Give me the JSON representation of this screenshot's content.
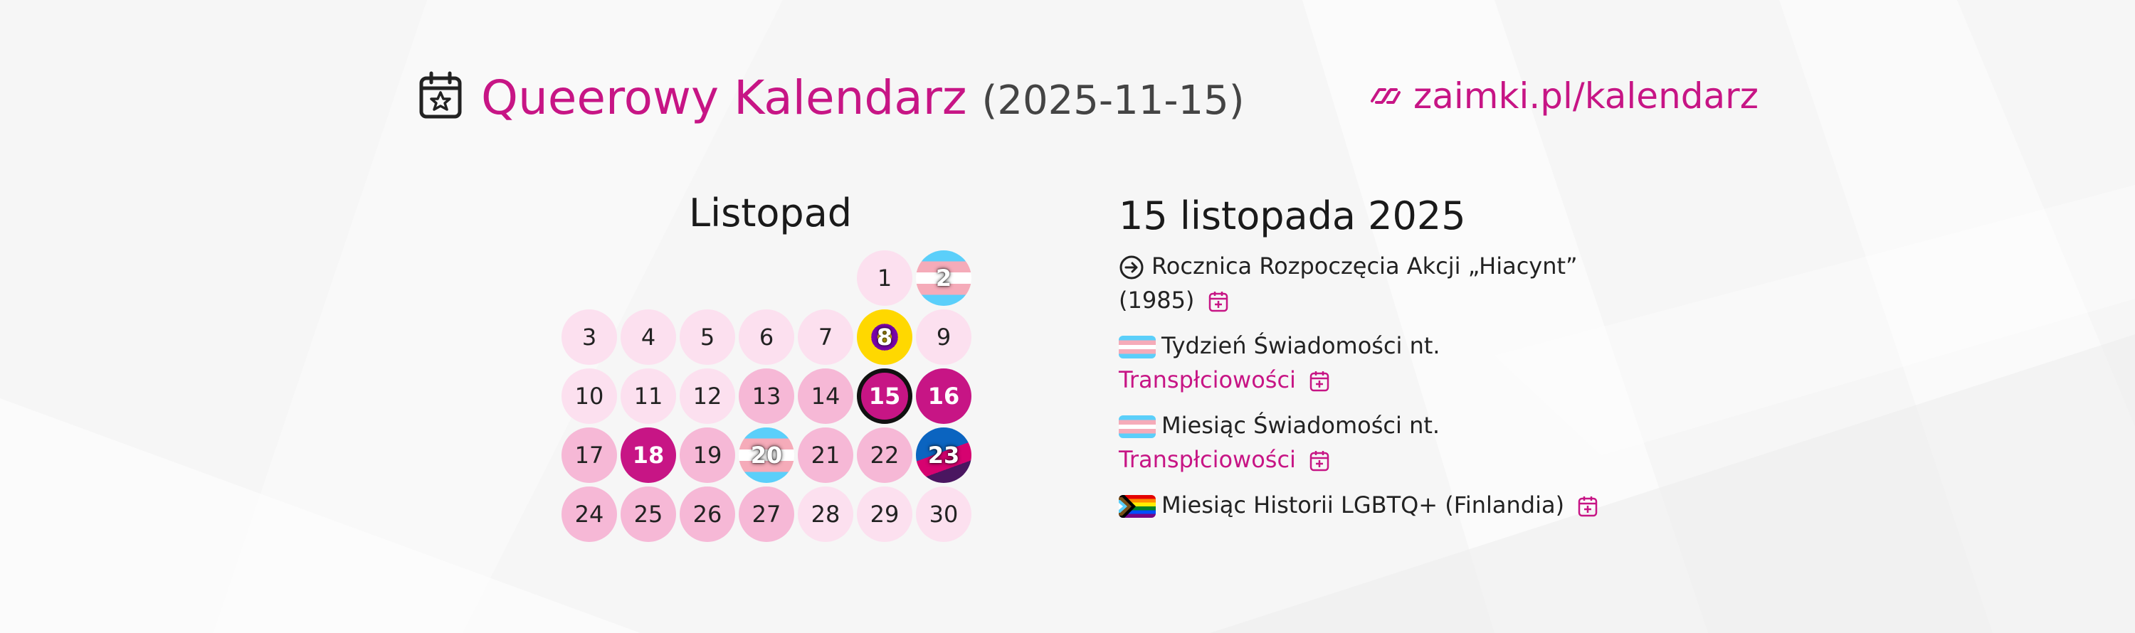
{
  "header": {
    "title": "Queerowy Kalendarz",
    "date": "(2025-11-15)",
    "link": "zaimki.pl/kalendarz",
    "icon": "calendar-star-icon",
    "accent_color": "#c71585"
  },
  "calendar": {
    "month": "Listopad",
    "days": [
      {
        "n": "1",
        "style": "light"
      },
      {
        "n": "2",
        "style": "trans-flag"
      },
      {
        "n": "3",
        "style": "light"
      },
      {
        "n": "4",
        "style": "light"
      },
      {
        "n": "5",
        "style": "light"
      },
      {
        "n": "6",
        "style": "light"
      },
      {
        "n": "7",
        "style": "light"
      },
      {
        "n": "8",
        "style": "intersex-flag"
      },
      {
        "n": "9",
        "style": "light"
      },
      {
        "n": "10",
        "style": "light"
      },
      {
        "n": "11",
        "style": "light"
      },
      {
        "n": "12",
        "style": "light"
      },
      {
        "n": "13",
        "style": "medium"
      },
      {
        "n": "14",
        "style": "medium"
      },
      {
        "n": "15",
        "style": "today"
      },
      {
        "n": "16",
        "style": "dark"
      },
      {
        "n": "17",
        "style": "medium"
      },
      {
        "n": "18",
        "style": "dark"
      },
      {
        "n": "19",
        "style": "medium"
      },
      {
        "n": "20",
        "style": "trans-flag"
      },
      {
        "n": "21",
        "style": "medium"
      },
      {
        "n": "22",
        "style": "medium"
      },
      {
        "n": "23",
        "style": "mixed-flag"
      },
      {
        "n": "24",
        "style": "medium"
      },
      {
        "n": "25",
        "style": "medium"
      },
      {
        "n": "26",
        "style": "medium"
      },
      {
        "n": "27",
        "style": "medium"
      },
      {
        "n": "28",
        "style": "light"
      },
      {
        "n": "29",
        "style": "light"
      },
      {
        "n": "30",
        "style": "light"
      }
    ]
  },
  "detail": {
    "title": "15 listopada 2025",
    "events": [
      {
        "icon": "arrow-circle-right-icon",
        "line1": "Rocznica Rozpoczęcia Akcji „Hiacynt”",
        "line2": "(1985)"
      },
      {
        "icon": "trans-flag-icon",
        "line1": "Tydzień Świadomości nt.",
        "line2": "Transpłciowości"
      },
      {
        "icon": "trans-flag-icon",
        "line1": "Miesiąc Świadomości nt.",
        "line2": "Transpłciowości"
      },
      {
        "icon": "progress-pride-flag-icon",
        "line1": "Miesiąc Historii LGBTQ+ (Finlandia)"
      }
    ]
  }
}
